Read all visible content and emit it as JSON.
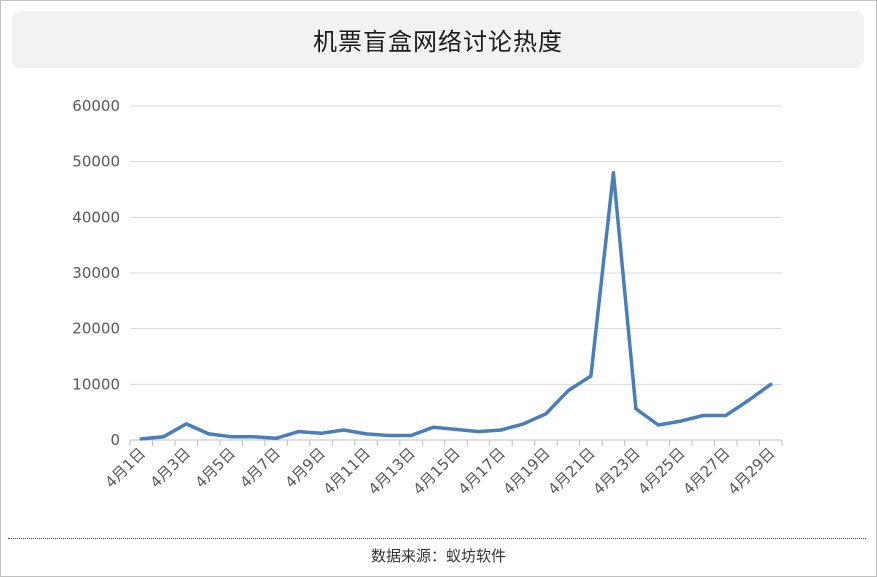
{
  "chart_data": {
    "type": "line",
    "title": "机票盲盒网络讨论热度",
    "xlabel": "",
    "ylabel": "",
    "ylim": [
      0,
      60000
    ],
    "yticks": [
      "0",
      "10000",
      "20000",
      "30000",
      "40000",
      "50000",
      "60000"
    ],
    "grid": true,
    "legend": "none",
    "line_color": "#4a7ebb",
    "grid_color": "#d9d9d9",
    "x": [
      "4月1日",
      "4月2日",
      "4月3日",
      "4月4日",
      "4月5日",
      "4月6日",
      "4月7日",
      "4月8日",
      "4月9日",
      "4月10日",
      "4月11日",
      "4月12日",
      "4月13日",
      "4月14日",
      "4月15日",
      "4月16日",
      "4月17日",
      "4月18日",
      "4月19日",
      "4月20日",
      "4月21日",
      "4月22日",
      "4月23日",
      "4月24日",
      "4月25日",
      "4月26日",
      "4月27日",
      "4月28日",
      "4月29日"
    ],
    "tick_labels": [
      "4月1日",
      "4月3日",
      "4月5日",
      "4月7日",
      "4月9日",
      "4月11日",
      "4月13日",
      "4月15日",
      "4月17日",
      "4月19日",
      "4月21日",
      "4月23日",
      "4月25日",
      "4月27日",
      "4月29日"
    ],
    "series": [
      {
        "values": [
          200,
          600,
          2900,
          1100,
          600,
          600,
          300,
          1500,
          1200,
          1800,
          1100,
          800,
          800,
          2300,
          1900,
          1500,
          1800,
          2900,
          4700,
          8900,
          11500,
          48000,
          5600,
          2700,
          3400,
          4400,
          4400,
          7100,
          10000
        ]
      }
    ]
  },
  "footer": {
    "source": "数据来源：蚁坊软件"
  }
}
